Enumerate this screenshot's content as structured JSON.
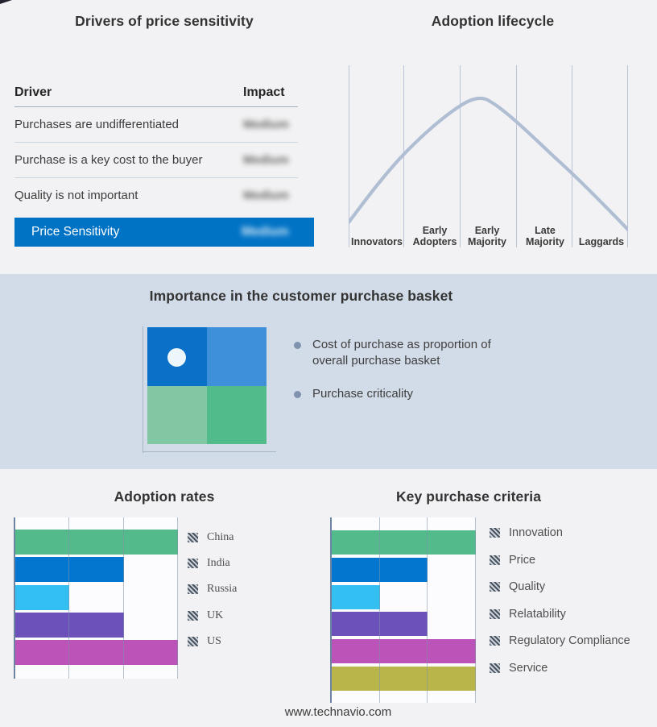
{
  "footer": {
    "text": "www.technavio.com"
  },
  "colors": {
    "page_background": "#f2f2f4",
    "band_background": "#d2dce8",
    "highlight_blue": "#0173c5",
    "curve": "#b0bed4"
  },
  "chart_data": [
    {
      "id": "drivers_table",
      "type": "table",
      "title": "Drivers of price sensitivity",
      "columns": [
        "Driver",
        "Impact"
      ],
      "rows": [
        [
          "Purchases are undifferentiated",
          "Medium"
        ],
        [
          "Purchase is a key cost to the buyer",
          "Medium"
        ],
        [
          "Quality is not important",
          "Medium"
        ],
        [
          "Price Sensitivity",
          "Medium"
        ]
      ],
      "impact_values_blurred": true,
      "highlight_row_index": 3,
      "highlight_color": "#0173c5"
    },
    {
      "id": "adoption_lifecycle",
      "type": "line",
      "title": "Adoption lifecycle",
      "categories": [
        "Innovators",
        "Early Adopters",
        "Early Majority",
        "Late Majority",
        "Laggards"
      ],
      "description": "Bell-shaped adoption curve peaking near Early Majority",
      "gridline_count": 6,
      "curve_color": "#b0bed4"
    },
    {
      "id": "purchase_basket",
      "type": "other",
      "title": "Importance in the customer purchase basket",
      "bullets": [
        "Cost of purchase as proportion of overall purchase basket",
        "Purchase criticality"
      ],
      "quadrant_colors": {
        "top_left": "#0b70c8",
        "top_right": "#3e90da",
        "bottom_left": "#81c7a4",
        "bottom_right": "#52bb8b"
      },
      "marker": "white dot in top-left quadrant"
    },
    {
      "id": "adoption_rates",
      "type": "bar",
      "title": "Adoption rates",
      "orientation": "horizontal",
      "categories": [
        "China",
        "India",
        "Russia",
        "UK",
        "US"
      ],
      "values": [
        3,
        2,
        1,
        2,
        3
      ],
      "xlim": [
        0,
        3
      ],
      "value_unit": "relative gridline units (no numeric axis labels shown)",
      "colors": [
        "#52ba8b",
        "#0377cf",
        "#33bff2",
        "#6b51b9",
        "#bb53b9"
      ],
      "legend_position": "right",
      "legend_swatch": "gray diagonal hatch"
    },
    {
      "id": "key_purchase_criteria",
      "type": "bar",
      "title": "Key purchase criteria",
      "orientation": "horizontal",
      "categories": [
        "Innovation",
        "Price",
        "Quality",
        "Relatability",
        "Regulatory Compliance",
        "Service"
      ],
      "values": [
        3,
        2,
        1,
        2,
        3,
        3
      ],
      "xlim": [
        0,
        3
      ],
      "value_unit": "relative gridline units (no numeric axis labels shown)",
      "colors": [
        "#52ba8b",
        "#0377cf",
        "#33bff2",
        "#6b51b9",
        "#bb53b9",
        "#b9b54b"
      ],
      "legend_position": "right",
      "legend_swatch": "gray diagonal hatch"
    }
  ]
}
